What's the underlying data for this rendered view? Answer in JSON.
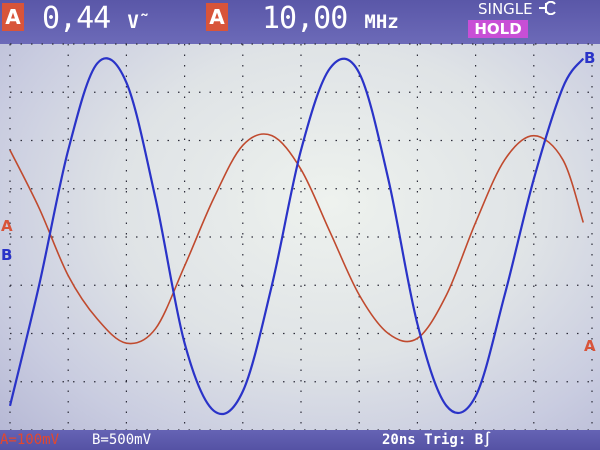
{
  "header": {
    "channel1_badge": "A",
    "amplitude_value": "0,44",
    "amplitude_unit": "V˜",
    "channel2_badge": "A",
    "frequency_value": "10,00",
    "frequency_unit": "MHz",
    "mode_label": "SINGLE",
    "mode_icon": "trigger-plug-icon",
    "hold_label": "HOLD"
  },
  "footer": {
    "channel_a_scale": "A=100mV",
    "channel_b_scale": "B=500mV",
    "timebase_trigger": "20ns Trig: B∫"
  },
  "markers": {
    "a_left": "A",
    "b_left": "B",
    "a_right": "A",
    "b_right": "B"
  },
  "colors": {
    "trace_a": "#c04a2e",
    "trace_b": "#2a33c8",
    "grid": "#2d2d3a",
    "header_bg": "#5f5cae",
    "hold_bg": "#c84fd6",
    "badge_bg": "#d8543a"
  },
  "chart_data": {
    "type": "line",
    "title": "",
    "xlabel": "",
    "ylabel": "",
    "divisions": {
      "x": 10,
      "y": 8
    },
    "xlim": [
      0,
      10
    ],
    "ylim": [
      -4,
      4
    ],
    "series": [
      {
        "name": "A",
        "x": [
          0,
          0.5,
          1,
          1.5,
          2,
          2.5,
          3,
          3.5,
          4,
          4.5,
          5,
          5.5,
          6,
          6.5,
          7,
          7.5,
          8,
          8.5,
          9,
          9.5,
          9.85
        ],
        "y": [
          1.8,
          0.6,
          -0.8,
          -1.7,
          -2.2,
          -1.9,
          -0.6,
          0.8,
          1.9,
          2.1,
          1.4,
          0.1,
          -1.2,
          -2.0,
          -2.1,
          -1.2,
          0.3,
          1.6,
          2.1,
          1.6,
          0.3
        ]
      },
      {
        "name": "B",
        "x": [
          0,
          0.5,
          1,
          1.5,
          2,
          2.5,
          3,
          3.5,
          4,
          4.5,
          5,
          5.5,
          6,
          6.5,
          7,
          7.5,
          8,
          8.5,
          9,
          9.5,
          9.85
        ],
        "y": [
          -3.5,
          -1.0,
          1.8,
          3.6,
          3.2,
          0.8,
          -2.2,
          -3.6,
          -3.2,
          -1.0,
          1.8,
          3.5,
          3.4,
          1.2,
          -1.8,
          -3.5,
          -3.3,
          -1.2,
          1.2,
          3.1,
          3.7
        ]
      }
    ]
  }
}
